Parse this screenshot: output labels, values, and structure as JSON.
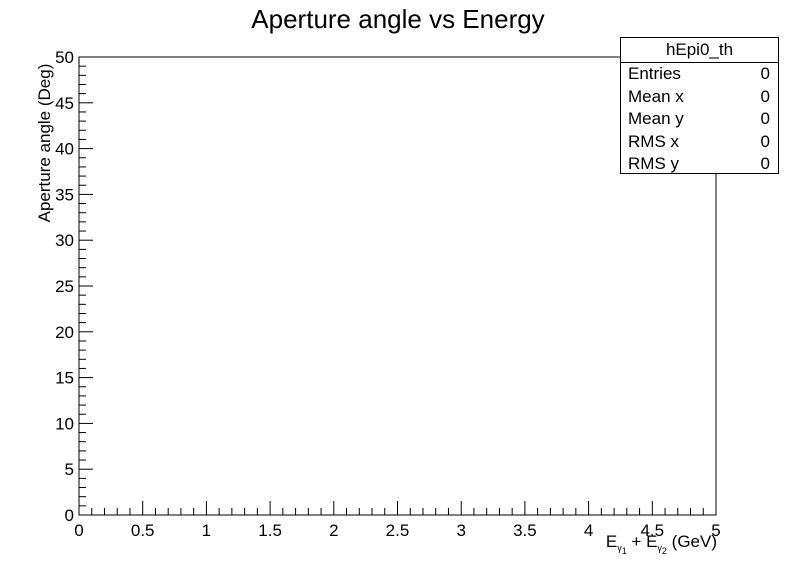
{
  "chart_data": {
    "type": "scatter",
    "title": "Aperture angle vs Energy",
    "xlabel": {
      "main": "E",
      "sub1": "γ",
      "sub1b": "1",
      "mid": " + E",
      "sub2": "γ",
      "sub2b": "2",
      "unit": " (GeV)"
    },
    "ylabel": "Aperture angle (Deg)",
    "xlim": [
      0,
      5
    ],
    "ylim": [
      0,
      50
    ],
    "x_ticks": [
      "0",
      "0.5",
      "1",
      "1.5",
      "2",
      "2.5",
      "3",
      "3.5",
      "4",
      "4.5",
      "5"
    ],
    "y_ticks": [
      "0",
      "5",
      "10",
      "15",
      "20",
      "25",
      "30",
      "35",
      "40",
      "45",
      "50"
    ],
    "series": [],
    "grid": false
  },
  "stats": {
    "name": "hEpi0_th",
    "rows": [
      {
        "key": "Entries",
        "value": "0"
      },
      {
        "key": "Mean x",
        "value": "0"
      },
      {
        "key": "Mean y",
        "value": "0"
      },
      {
        "key": "RMS x",
        "value": "0"
      },
      {
        "key": "RMS y",
        "value": "0"
      }
    ]
  }
}
